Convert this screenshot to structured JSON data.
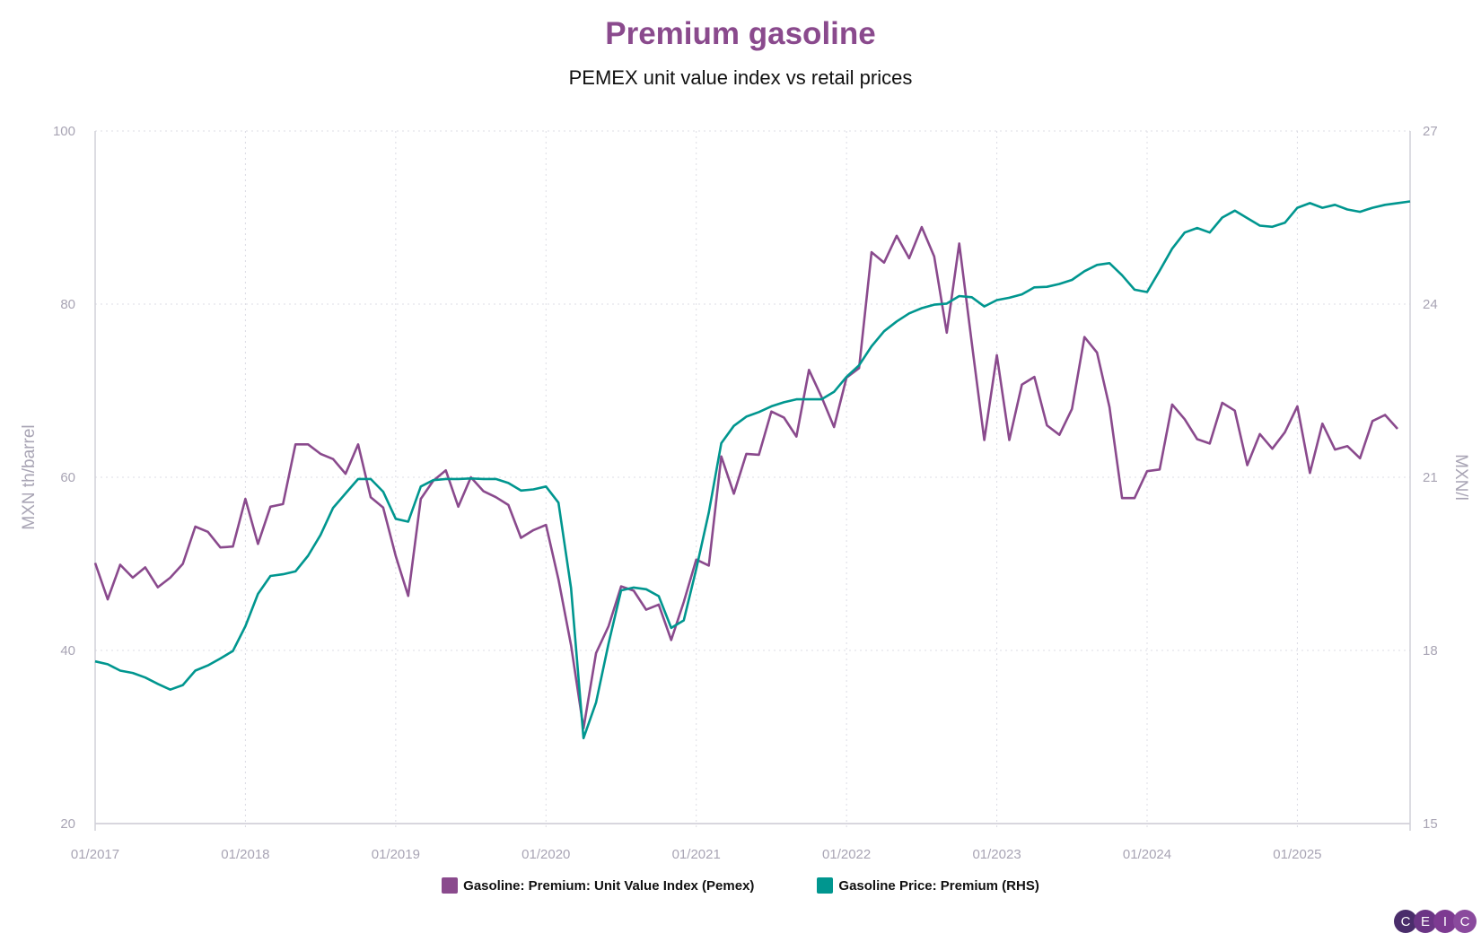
{
  "chart_data": {
    "type": "line",
    "title": "Premium gasoline",
    "subtitle": "PEMEX unit value index vs retail prices",
    "ylabel": "MXN th/barrel",
    "y2label": "MXN/l",
    "ylim": [
      20,
      100
    ],
    "y2lim": [
      15,
      27
    ],
    "yticks": [
      "20",
      "40",
      "60",
      "80",
      "100"
    ],
    "y2ticks": [
      "15",
      "18",
      "21",
      "24",
      "27"
    ],
    "xticks": [
      "01/2017",
      "01/2018",
      "01/2019",
      "01/2020",
      "01/2021",
      "01/2022",
      "01/2023",
      "01/2024",
      "01/2025"
    ],
    "grid": true,
    "legend_position": "bottom",
    "x": [
      "01/2017",
      "02/2017",
      "03/2017",
      "04/2017",
      "05/2017",
      "06/2017",
      "07/2017",
      "08/2017",
      "09/2017",
      "10/2017",
      "11/2017",
      "12/2017",
      "01/2018",
      "02/2018",
      "03/2018",
      "04/2018",
      "05/2018",
      "06/2018",
      "07/2018",
      "08/2018",
      "09/2018",
      "10/2018",
      "11/2018",
      "12/2018",
      "01/2019",
      "02/2019",
      "03/2019",
      "04/2019",
      "05/2019",
      "06/2019",
      "07/2019",
      "08/2019",
      "09/2019",
      "10/2019",
      "11/2019",
      "12/2019",
      "01/2020",
      "02/2020",
      "03/2020",
      "04/2020",
      "05/2020",
      "06/2020",
      "07/2020",
      "08/2020",
      "09/2020",
      "10/2020",
      "11/2020",
      "12/2020",
      "01/2021",
      "02/2021",
      "03/2021",
      "04/2021",
      "05/2021",
      "06/2021",
      "07/2021",
      "08/2021",
      "09/2021",
      "10/2021",
      "11/2021",
      "12/2021",
      "01/2022",
      "02/2022",
      "03/2022",
      "04/2022",
      "05/2022",
      "06/2022",
      "07/2022",
      "08/2022",
      "09/2022",
      "10/2022",
      "11/2022",
      "12/2022",
      "01/2023",
      "02/2023",
      "03/2023",
      "04/2023",
      "05/2023",
      "06/2023",
      "07/2023",
      "08/2023",
      "09/2023",
      "10/2023",
      "11/2023",
      "12/2023",
      "01/2024",
      "02/2024",
      "03/2024",
      "04/2024",
      "05/2024",
      "06/2024",
      "07/2024",
      "08/2024",
      "09/2024",
      "10/2024",
      "11/2024",
      "12/2024",
      "01/2025",
      "02/2025",
      "03/2025",
      "04/2025",
      "05/2025",
      "06/2025",
      "07/2025",
      "08/2025",
      "09/2025",
      "10/2025"
    ],
    "series": [
      {
        "name": "Gasoline: Premium: Unit Value Index (Pemex)",
        "axis": "left",
        "color": "#8a4a8d",
        "values": [
          50.1,
          45.9,
          49.9,
          48.4,
          49.6,
          47.3,
          48.4,
          50.0,
          54.3,
          53.7,
          51.9,
          52.0,
          57.5,
          52.3,
          56.6,
          56.9,
          63.8,
          63.8,
          62.7,
          62.1,
          60.4,
          63.8,
          57.7,
          56.5,
          50.9,
          46.3,
          57.5,
          59.6,
          60.8,
          56.6,
          60.0,
          58.4,
          57.7,
          56.8,
          53.0,
          53.9,
          54.5,
          48.2,
          40.6,
          31.0,
          39.7,
          42.8,
          47.4,
          46.9,
          44.7,
          45.3,
          41.2,
          45.6,
          50.5,
          49.8,
          62.4,
          58.1,
          62.7,
          62.6,
          67.6,
          66.9,
          64.7,
          72.4,
          69.3,
          65.8,
          71.5,
          72.6,
          86.0,
          84.8,
          87.9,
          85.3,
          88.9,
          85.5,
          76.7,
          87.0,
          75.5,
          64.3,
          74.1,
          64.3,
          70.7,
          71.6,
          66.0,
          64.9,
          67.9,
          76.2,
          74.4,
          68.1,
          57.6,
          57.6,
          60.7,
          60.9,
          68.4,
          66.7,
          64.4,
          63.9,
          68.6,
          67.7,
          61.4,
          65.0,
          63.3,
          65.2,
          68.2,
          60.5,
          66.2,
          63.2,
          63.6,
          62.2,
          66.5,
          67.2,
          65.6,
          null
        ]
      },
      {
        "name": "Gasoline Price: Premium (RHS)",
        "axis": "right",
        "color": "#00968f",
        "values": [
          17.81,
          17.76,
          17.65,
          17.61,
          17.53,
          17.42,
          17.32,
          17.4,
          17.65,
          17.74,
          17.86,
          17.99,
          18.42,
          18.98,
          19.29,
          19.32,
          19.37,
          19.64,
          20.0,
          20.47,
          20.72,
          20.97,
          20.97,
          20.75,
          20.28,
          20.23,
          20.84,
          20.95,
          20.97,
          20.97,
          20.98,
          20.97,
          20.97,
          20.9,
          20.77,
          20.79,
          20.84,
          20.56,
          19.08,
          16.48,
          17.1,
          18.12,
          19.04,
          19.09,
          19.06,
          18.94,
          18.39,
          18.52,
          19.41,
          20.39,
          21.59,
          21.89,
          22.05,
          22.13,
          22.23,
          22.3,
          22.35,
          22.35,
          22.35,
          22.48,
          22.74,
          22.94,
          23.27,
          23.53,
          23.7,
          23.84,
          23.93,
          23.99,
          24.01,
          24.14,
          24.12,
          23.96,
          24.07,
          24.11,
          24.17,
          24.29,
          24.3,
          24.35,
          24.42,
          24.57,
          24.68,
          24.71,
          24.5,
          24.25,
          24.21,
          24.58,
          24.96,
          25.24,
          25.32,
          25.24,
          25.5,
          25.62,
          25.49,
          25.36,
          25.34,
          25.41,
          25.67,
          25.75,
          25.67,
          25.72,
          25.64,
          25.6,
          25.67,
          25.72,
          25.75,
          25.78
        ]
      }
    ]
  },
  "logo": "CEIC"
}
